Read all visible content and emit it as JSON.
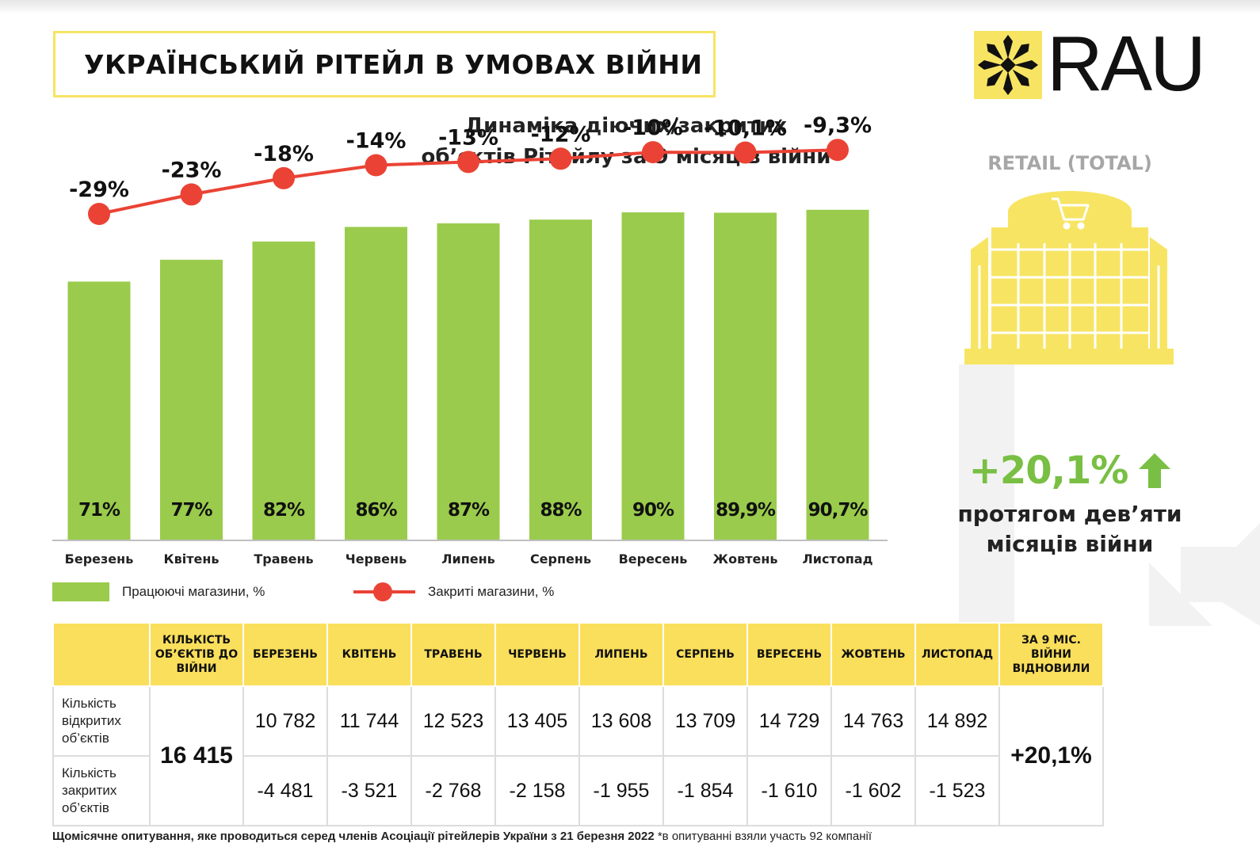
{
  "header": {
    "title": "УКРАЇНСЬКИЙ РІТЕЙЛ В УМОВАХ ВІЙНИ",
    "logo_text": "RAU"
  },
  "chart_title": [
    "Динаміка діючих/закритих",
    "об’єктів Рітейлу за 9 місяців війни"
  ],
  "side_panel": {
    "label": "RETAIL (TOTAL)",
    "growth_value": "+20,1%",
    "growth_text": [
      "протягом дев’яти",
      "місяців війни"
    ]
  },
  "colors": {
    "bar": "#9acb4c",
    "line": "#ea4335",
    "accent": "#fadf5c",
    "growth": "#79bf43"
  },
  "chart_data": {
    "type": "bar",
    "categories": [
      "Березень",
      "Квітень",
      "Травень",
      "Червень",
      "Липень",
      "Серпень",
      "Вересень",
      "Жовтень",
      "Листопад"
    ],
    "series": [
      {
        "name": "Працюючі магазини, %",
        "type": "bar",
        "values": [
          71,
          77,
          82,
          86,
          87,
          88,
          90,
          89.9,
          90.7
        ],
        "labels": [
          "71%",
          "77%",
          "82%",
          "86%",
          "87%",
          "88%",
          "90%",
          "89,9%",
          "90,7%"
        ]
      },
      {
        "name": "Закриті магазини, %",
        "type": "line",
        "values": [
          -29,
          -23,
          -18,
          -14,
          -13,
          -12,
          -10,
          -10.1,
          -9.3
        ],
        "labels": [
          "-29%",
          "-23%",
          "-18%",
          "-14%",
          "-13%",
          "-12%",
          "-10%",
          "-10,1%",
          "-9,3%"
        ]
      }
    ],
    "ylim": [
      0,
      100
    ],
    "legend": "bottom-left",
    "grid": false
  },
  "table": {
    "headers": [
      "КІЛЬКІСТЬ ОБ’ЄКТІВ ДО ВІЙНИ",
      "БЕРЕЗЕНЬ",
      "КВІТЕНЬ",
      "ТРАВЕНЬ",
      "ЧЕРВЕНЬ",
      "ЛИПЕНЬ",
      "СЕРПЕНЬ",
      "ВЕРЕСЕНЬ",
      "ЖОВТЕНЬ",
      "ЛИСТОПАД",
      "ЗА 9 МІС. ВІЙНИ ВІДНОВИЛИ"
    ],
    "pre_war_total": "16 415",
    "total_restored": "+20,1%",
    "rows": [
      {
        "label": "Кількість відкритих об’єктів",
        "values": [
          "10 782",
          "11 744",
          "12 523",
          "13 405",
          "13 608",
          "13 709",
          "14 729",
          "14 763",
          "14 892"
        ]
      },
      {
        "label": "Кількість закритих об’єктів",
        "values": [
          "-4 481",
          "-3 521",
          "-2 768",
          "-2 158",
          "-1 955",
          "-1 854",
          "-1 610",
          "-1 602",
          "-1 523"
        ]
      }
    ]
  },
  "footnote": {
    "main": "Щомісячне опитування, яке проводиться серед членів Асоціації рітейлерів України з 21 березня 2022",
    "note": "*в опитуванні взяли участь 92 компанії"
  }
}
